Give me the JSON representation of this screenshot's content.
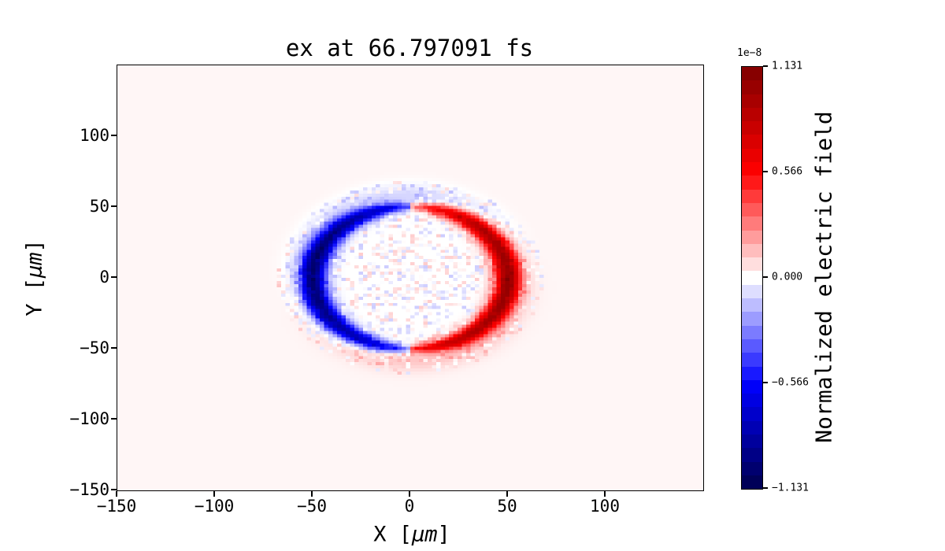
{
  "chart_data": {
    "type": "heatmap",
    "title": "ex at 66.797091 fs",
    "xlabel": {
      "pre": "X [",
      "math": "μm",
      "post": "]"
    },
    "ylabel": {
      "pre": "Y [",
      "math": "μm",
      "post": "]"
    },
    "xlim": [
      -150,
      150
    ],
    "ylim": [
      -150,
      150
    ],
    "x_ticks": {
      "values": [
        -150,
        -100,
        -50,
        0,
        50,
        100
      ],
      "labels": [
        "−150",
        "−100",
        "−50",
        "0",
        "50",
        "100"
      ]
    },
    "y_ticks": {
      "values": [
        100,
        50,
        0,
        -50,
        -100,
        -150
      ],
      "labels": [
        "100",
        "50",
        "0",
        "−50",
        "−100",
        "−150"
      ]
    },
    "grid": false,
    "colormap": {
      "name": "seismic",
      "stops": [
        [
          0.0,
          "#00004d"
        ],
        [
          0.25,
          "#0000ff"
        ],
        [
          0.5,
          "#ffffff"
        ],
        [
          0.75,
          "#ff0000"
        ],
        [
          1.0,
          "#7f0000"
        ]
      ]
    },
    "colorbar": {
      "position": "right",
      "label": "Normalized electric field",
      "offset_text": "1e−8",
      "tick_values": [
        1.131,
        0.566,
        0.0,
        -0.566,
        -1.131
      ],
      "tick_labels": [
        "1.131",
        "0.566",
        "0.000",
        "−0.566",
        "−1.131"
      ],
      "vmin": -1.131e-08,
      "vmax": 1.131e-08,
      "bands": 31
    },
    "field_model": {
      "description": "Dipole ring of normalized electric field ex centered at (0,0): intense negative (blue) crescent on the left half, intense positive (red) crescent on the right half, radius ~50 μm with tips vanishing near the top and bottom; faint diffuse blue halo over the top half and faint pink halo under the bottom half (~57 μm radius); sparse pale speckle noise inside the ring; very faint positive (pale pink) uniform background outside",
      "ring_radius_um": 50,
      "ring_amplitude": 0.9,
      "ring_core_width_um": 2.2,
      "ring_width_gain_um": 4.5,
      "ring_tip_angles_deg": [
        90,
        270
      ],
      "halo_radius_um": 57.5,
      "halo_width_um": 8.5,
      "halo_amplitude": 0.1,
      "halo_rotation_rad": 0.25,
      "background_level": 0.018,
      "noise_amplitude": 0.1,
      "noise_max_radius_um": 68,
      "grid_cells": 136
    }
  }
}
